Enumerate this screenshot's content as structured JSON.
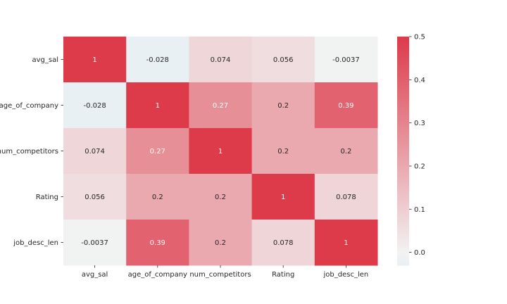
{
  "chart_data": {
    "type": "heatmap",
    "x_labels": [
      "avg_sal",
      "age_of_company",
      "num_competitors",
      "Rating",
      "job_desc_len"
    ],
    "y_labels": [
      "avg_sal",
      "age_of_company",
      "num_competitors",
      "Rating",
      "job_desc_len"
    ],
    "values": [
      [
        1,
        -0.028,
        0.074,
        0.056,
        -0.0037
      ],
      [
        -0.028,
        1,
        0.27,
        0.2,
        0.39
      ],
      [
        0.074,
        0.27,
        1,
        0.2,
        0.2
      ],
      [
        0.056,
        0.2,
        0.2,
        1,
        0.078
      ],
      [
        -0.0037,
        0.39,
        0.2,
        0.078,
        1
      ]
    ],
    "annotations": [
      [
        "1",
        "-0.028",
        "0.074",
        "0.056",
        "-0.0037"
      ],
      [
        "-0.028",
        "1",
        "0.27",
        "0.2",
        "0.39"
      ],
      [
        "0.074",
        "0.27",
        "1",
        "0.2",
        "0.2"
      ],
      [
        "0.056",
        "0.2",
        "0.2",
        "1",
        "0.078"
      ],
      [
        "-0.0037",
        "0.39",
        "0.2",
        "0.078",
        "1"
      ]
    ],
    "color_range": [
      -0.03,
      0.5
    ],
    "colorbar_ticks": [
      "0.0",
      "0.1",
      "0.2",
      "0.3",
      "0.4",
      "0.5"
    ],
    "colorbar_tick_values": [
      0,
      0.1,
      0.2,
      0.3,
      0.4,
      0.5
    ],
    "colormap": {
      "low": "#e8f0f4",
      "mid": "#f2f2f2",
      "high": "#dd3a4a"
    },
    "title": "",
    "xlabel": "",
    "ylabel": ""
  }
}
